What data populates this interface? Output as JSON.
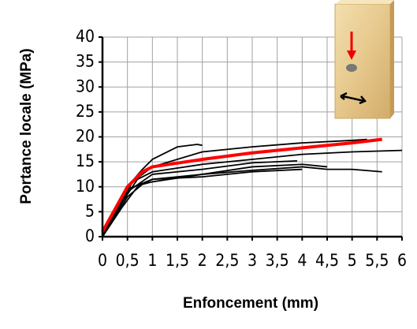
{
  "chart_data": {
    "type": "line",
    "xlabel": "Enfoncement (mm)",
    "ylabel": "Portance locale (MPa)",
    "xlim": [
      0,
      6
    ],
    "ylim": [
      0,
      40
    ],
    "xticks": [
      0,
      {
        "value": 0.5,
        "label": "0,5"
      },
      1,
      {
        "value": 1.5,
        "label": "1,5"
      },
      2,
      {
        "value": 2.5,
        "label": "2,5"
      },
      3,
      {
        "value": 3.5,
        "label": "3,5"
      },
      4,
      {
        "value": 4.5,
        "label": "4,5"
      },
      5,
      {
        "value": 5.5,
        "label": "5,5"
      },
      6
    ],
    "yticks": [
      0,
      5,
      10,
      15,
      20,
      25,
      30,
      35,
      40
    ],
    "grid": true,
    "series": [
      {
        "color": "#000000",
        "x": [
          0,
          0.3,
          0.5,
          0.8,
          1,
          1.5,
          1.9,
          2.0
        ],
        "values": [
          0,
          6,
          10,
          13.5,
          15.5,
          18,
          18.5,
          18.3
        ]
      },
      {
        "color": "#000000",
        "x": [
          0,
          0.3,
          0.6,
          1,
          2,
          3,
          4,
          5,
          5.3
        ],
        "values": [
          0,
          5,
          11,
          14,
          17,
          18,
          18.8,
          19.3,
          19.5
        ]
      },
      {
        "color": "#000000",
        "x": [
          0,
          0.4,
          0.7,
          1,
          2,
          3,
          4,
          5,
          6
        ],
        "values": [
          0.5,
          7,
          11.5,
          13,
          14.5,
          15.5,
          16.5,
          17,
          17.3
        ]
      },
      {
        "color": "#000000",
        "x": [
          0,
          0.4,
          0.7,
          1,
          2,
          3,
          4,
          4.5,
          5,
          5.6
        ],
        "values": [
          0,
          6,
          10,
          11.5,
          12.5,
          13.3,
          14,
          13.5,
          13.5,
          13
        ]
      },
      {
        "color": "#000000",
        "x": [
          0,
          0.5,
          0.8,
          1,
          2,
          3,
          4,
          4.5
        ],
        "values": [
          0,
          8,
          10.5,
          11,
          12.5,
          14,
          14.5,
          14
        ]
      },
      {
        "color": "#000000",
        "x": [
          0,
          0.5,
          1,
          2,
          3,
          3.9
        ],
        "values": [
          0,
          9,
          12.5,
          13.5,
          14.8,
          15.2
        ]
      },
      {
        "color": "#000000",
        "x": [
          0,
          0.5,
          1,
          2,
          3,
          4
        ],
        "values": [
          0,
          9.5,
          11.5,
          12,
          13,
          13.5
        ]
      },
      {
        "color": "#ff0000",
        "x": [
          0,
          0.5,
          0.8,
          1,
          2,
          3,
          4,
          5,
          5.6
        ],
        "values": [
          1,
          10,
          13,
          14,
          15.5,
          16.8,
          17.8,
          18.8,
          19.5
        ]
      }
    ]
  }
}
